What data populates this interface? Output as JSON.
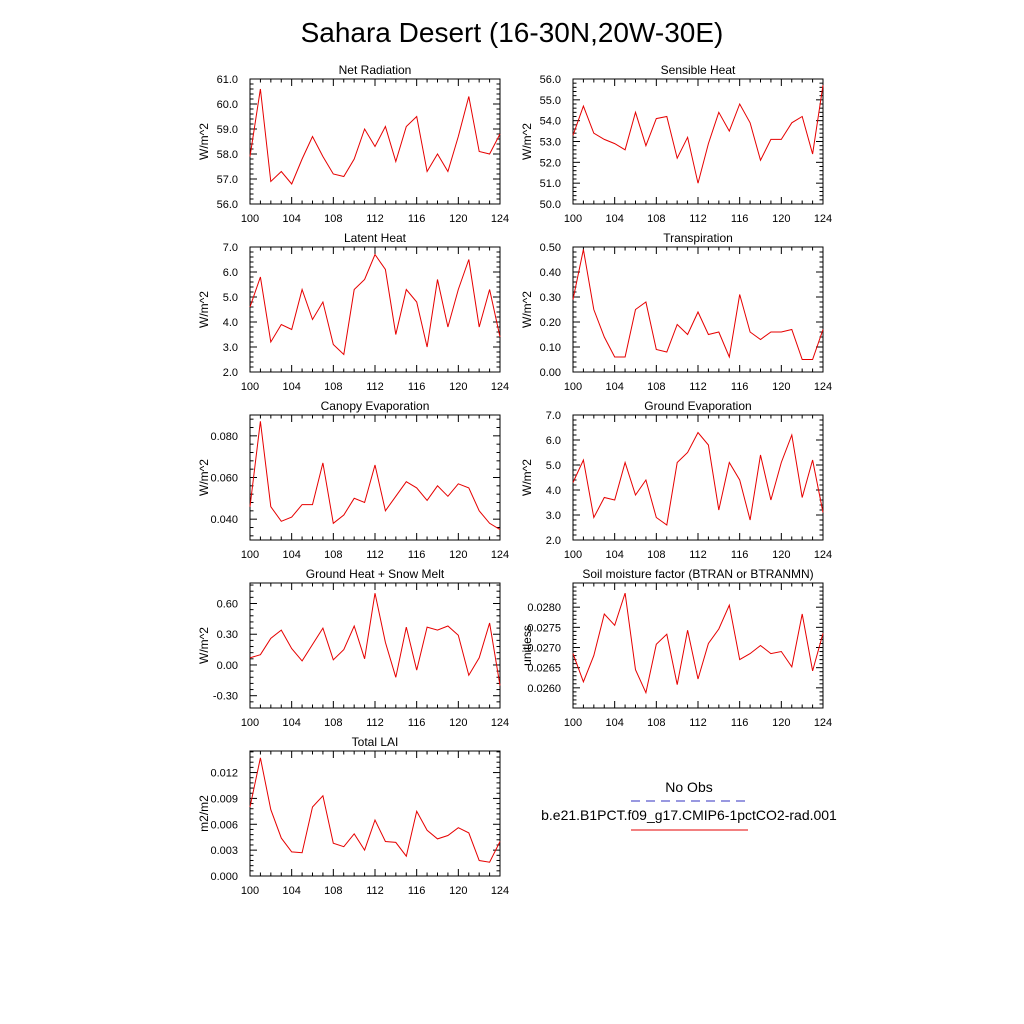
{
  "title": "Sahara Desert (16-30N,20W-30E)",
  "colors": {
    "model": "#e60000",
    "obs": "#3030c0",
    "axis": "#000000"
  },
  "legend": {
    "obs_label": "No Obs",
    "model_label": "b.e21.B1PCT.f09_g17.CMIP6-1pctCO2-rad.001"
  },
  "chart_data": [
    {
      "type": "line",
      "title": "Net Radiation",
      "ylabel": "W/m^2",
      "xlim": [
        100,
        124
      ],
      "ylim": [
        56,
        61
      ],
      "xticks": [
        100,
        104,
        108,
        112,
        116,
        120,
        124
      ],
      "xtick_labels": [
        "100",
        "104",
        "108",
        "112",
        "116",
        "120",
        "124"
      ],
      "yticks": [
        56,
        57,
        58,
        59,
        60,
        61
      ],
      "ytick_labels": [
        "56.0",
        "57.0",
        "58.0",
        "59.0",
        "60.0",
        "61.0"
      ],
      "series": [
        {
          "x": [
            100,
            101,
            102,
            103,
            104,
            105,
            106,
            107,
            108,
            109,
            110,
            111,
            112,
            113,
            114,
            115,
            116,
            117,
            118,
            119,
            120,
            121,
            122,
            123,
            124
          ],
          "values": [
            57.9,
            60.6,
            56.9,
            57.3,
            56.8,
            57.8,
            58.7,
            57.9,
            57.2,
            57.1,
            57.8,
            59.0,
            58.3,
            59.1,
            57.7,
            59.1,
            59.5,
            57.3,
            58.0,
            57.3,
            58.7,
            60.3,
            58.1,
            58.0,
            58.8
          ]
        }
      ]
    },
    {
      "type": "line",
      "title": "Sensible Heat",
      "ylabel": "W/m^2",
      "xlim": [
        100,
        124
      ],
      "ylim": [
        50,
        56
      ],
      "xticks": [
        100,
        104,
        108,
        112,
        116,
        120,
        124
      ],
      "xtick_labels": [
        "100",
        "104",
        "108",
        "112",
        "116",
        "120",
        "124"
      ],
      "yticks": [
        50,
        51,
        52,
        53,
        54,
        55,
        56
      ],
      "ytick_labels": [
        "50.0",
        "51.0",
        "52.0",
        "53.0",
        "54.0",
        "55.0",
        "56.0"
      ],
      "series": [
        {
          "x": [
            100,
            101,
            102,
            103,
            104,
            105,
            106,
            107,
            108,
            109,
            110,
            111,
            112,
            113,
            114,
            115,
            116,
            117,
            118,
            119,
            120,
            121,
            122,
            123,
            124
          ],
          "values": [
            53.3,
            54.7,
            53.4,
            53.1,
            52.9,
            52.6,
            54.4,
            52.8,
            54.1,
            54.2,
            52.2,
            53.2,
            51.0,
            52.9,
            54.4,
            53.5,
            54.8,
            53.9,
            52.1,
            53.1,
            53.1,
            53.9,
            54.2,
            52.4,
            55.7
          ]
        }
      ]
    },
    {
      "type": "line",
      "title": "Latent Heat",
      "ylabel": "W/m^2",
      "xlim": [
        100,
        124
      ],
      "ylim": [
        2,
        7
      ],
      "xticks": [
        100,
        104,
        108,
        112,
        116,
        120,
        124
      ],
      "xtick_labels": [
        "100",
        "104",
        "108",
        "112",
        "116",
        "120",
        "124"
      ],
      "yticks": [
        2,
        3,
        4,
        5,
        6,
        7
      ],
      "ytick_labels": [
        "2.0",
        "3.0",
        "4.0",
        "5.0",
        "6.0",
        "7.0"
      ],
      "series": [
        {
          "x": [
            100,
            101,
            102,
            103,
            104,
            105,
            106,
            107,
            108,
            109,
            110,
            111,
            112,
            113,
            114,
            115,
            116,
            117,
            118,
            119,
            120,
            121,
            122,
            123,
            124
          ],
          "values": [
            4.6,
            5.8,
            3.2,
            3.9,
            3.7,
            5.3,
            4.1,
            4.8,
            3.1,
            2.7,
            5.3,
            5.7,
            6.7,
            6.1,
            3.5,
            5.3,
            4.8,
            3.0,
            5.7,
            3.8,
            5.3,
            6.5,
            3.8,
            5.3,
            3.4
          ]
        }
      ]
    },
    {
      "type": "line",
      "title": "Transpiration",
      "ylabel": "W/m^2",
      "xlim": [
        100,
        124
      ],
      "ylim": [
        0,
        0.5
      ],
      "xticks": [
        100,
        104,
        108,
        112,
        116,
        120,
        124
      ],
      "xtick_labels": [
        "100",
        "104",
        "108",
        "112",
        "116",
        "120",
        "124"
      ],
      "yticks": [
        0,
        0.1,
        0.2,
        0.3,
        0.4,
        0.5
      ],
      "ytick_labels": [
        "0.00",
        "0.10",
        "0.20",
        "0.30",
        "0.40",
        "0.50"
      ],
      "series": [
        {
          "x": [
            100,
            101,
            102,
            103,
            104,
            105,
            106,
            107,
            108,
            109,
            110,
            111,
            112,
            113,
            114,
            115,
            116,
            117,
            118,
            119,
            120,
            121,
            122,
            123,
            124
          ],
          "values": [
            0.29,
            0.49,
            0.25,
            0.14,
            0.06,
            0.06,
            0.25,
            0.28,
            0.09,
            0.08,
            0.19,
            0.15,
            0.24,
            0.15,
            0.16,
            0.06,
            0.31,
            0.16,
            0.13,
            0.16,
            0.16,
            0.17,
            0.05,
            0.05,
            0.17
          ]
        }
      ]
    },
    {
      "type": "line",
      "title": "Canopy Evaporation",
      "ylabel": "W/m^2",
      "xlim": [
        100,
        124
      ],
      "ylim": [
        0.03,
        0.09
      ],
      "xticks": [
        100,
        104,
        108,
        112,
        116,
        120,
        124
      ],
      "xtick_labels": [
        "100",
        "104",
        "108",
        "112",
        "116",
        "120",
        "124"
      ],
      "yticks": [
        0.04,
        0.06,
        0.08
      ],
      "ytick_labels": [
        "0.040",
        "0.060",
        "0.080"
      ],
      "series": [
        {
          "x": [
            100,
            101,
            102,
            103,
            104,
            105,
            106,
            107,
            108,
            109,
            110,
            111,
            112,
            113,
            114,
            115,
            116,
            117,
            118,
            119,
            120,
            121,
            122,
            123,
            124
          ],
          "values": [
            0.046,
            0.087,
            0.046,
            0.039,
            0.041,
            0.047,
            0.047,
            0.067,
            0.038,
            0.042,
            0.05,
            0.048,
            0.066,
            0.044,
            0.051,
            0.058,
            0.055,
            0.049,
            0.056,
            0.051,
            0.057,
            0.055,
            0.044,
            0.038,
            0.035
          ]
        }
      ]
    },
    {
      "type": "line",
      "title": "Ground Evaporation",
      "ylabel": "W/m^2",
      "xlim": [
        100,
        124
      ],
      "ylim": [
        2,
        7
      ],
      "xticks": [
        100,
        104,
        108,
        112,
        116,
        120,
        124
      ],
      "xtick_labels": [
        "100",
        "104",
        "108",
        "112",
        "116",
        "120",
        "124"
      ],
      "yticks": [
        2,
        3,
        4,
        5,
        6,
        7
      ],
      "ytick_labels": [
        "2.0",
        "3.0",
        "4.0",
        "5.0",
        "6.0",
        "7.0"
      ],
      "series": [
        {
          "x": [
            100,
            101,
            102,
            103,
            104,
            105,
            106,
            107,
            108,
            109,
            110,
            111,
            112,
            113,
            114,
            115,
            116,
            117,
            118,
            119,
            120,
            121,
            122,
            123,
            124
          ],
          "values": [
            4.3,
            5.2,
            2.9,
            3.7,
            3.6,
            5.1,
            3.8,
            4.4,
            2.9,
            2.6,
            5.1,
            5.5,
            6.3,
            5.8,
            3.2,
            5.1,
            4.4,
            2.8,
            5.4,
            3.6,
            5.1,
            6.2,
            3.7,
            5.2,
            3.1
          ]
        }
      ]
    },
    {
      "type": "line",
      "title": "Ground Heat + Snow Melt",
      "ylabel": "W/m^2",
      "xlim": [
        100,
        124
      ],
      "ylim": [
        -0.42,
        0.8
      ],
      "xticks": [
        100,
        104,
        108,
        112,
        116,
        120,
        124
      ],
      "xtick_labels": [
        "100",
        "104",
        "108",
        "112",
        "116",
        "120",
        "124"
      ],
      "yticks": [
        -0.3,
        0,
        0.3,
        0.6
      ],
      "ytick_labels": [
        "-0.30",
        "0.00",
        "0.30",
        "0.60"
      ],
      "series": [
        {
          "x": [
            100,
            101,
            102,
            103,
            104,
            105,
            106,
            107,
            108,
            109,
            110,
            111,
            112,
            113,
            114,
            115,
            116,
            117,
            118,
            119,
            120,
            121,
            122,
            123,
            124
          ],
          "values": [
            0.07,
            0.1,
            0.26,
            0.34,
            0.16,
            0.04,
            0.2,
            0.36,
            0.05,
            0.15,
            0.38,
            0.06,
            0.7,
            0.22,
            -0.12,
            0.37,
            -0.05,
            0.37,
            0.34,
            0.38,
            0.29,
            -0.1,
            0.07,
            0.41,
            -0.2
          ]
        }
      ]
    },
    {
      "type": "line",
      "title": "Soil moisture factor (BTRAN or BTRANMN)",
      "ylabel": "unitless",
      "xlim": [
        100,
        124
      ],
      "ylim": [
        0.0255,
        0.0286
      ],
      "xticks": [
        100,
        104,
        108,
        112,
        116,
        120,
        124
      ],
      "xtick_labels": [
        "100",
        "104",
        "108",
        "112",
        "116",
        "120",
        "124"
      ],
      "yticks": [
        0.026,
        0.0265,
        0.027,
        0.0275,
        0.028
      ],
      "ytick_labels": [
        "0.0260",
        "0.0265",
        "0.0270",
        "0.0275",
        "0.0280"
      ],
      "series": [
        {
          "x": [
            100,
            101,
            102,
            103,
            104,
            105,
            106,
            107,
            108,
            109,
            110,
            111,
            112,
            113,
            114,
            115,
            116,
            117,
            118,
            119,
            120,
            121,
            122,
            123,
            124
          ],
          "values": [
            0.02685,
            0.02615,
            0.0268,
            0.02783,
            0.02755,
            0.02835,
            0.02645,
            0.02588,
            0.02708,
            0.02733,
            0.02608,
            0.02743,
            0.02622,
            0.0271,
            0.02746,
            0.02805,
            0.0267,
            0.02685,
            0.02705,
            0.02685,
            0.0269,
            0.02652,
            0.02783,
            0.02642,
            0.02735
          ]
        }
      ]
    },
    {
      "type": "line",
      "title": "Total LAI",
      "ylabel": "m2/m2",
      "xlim": [
        100,
        124
      ],
      "ylim": [
        0,
        0.0145
      ],
      "xticks": [
        100,
        104,
        108,
        112,
        116,
        120,
        124
      ],
      "xtick_labels": [
        "100",
        "104",
        "108",
        "112",
        "116",
        "120",
        "124"
      ],
      "yticks": [
        0,
        0.003,
        0.006,
        0.009,
        0.012
      ],
      "ytick_labels": [
        "0.000",
        "0.003",
        "0.006",
        "0.009",
        "0.012"
      ],
      "series": [
        {
          "x": [
            100,
            101,
            102,
            103,
            104,
            105,
            106,
            107,
            108,
            109,
            110,
            111,
            112,
            113,
            114,
            115,
            116,
            117,
            118,
            119,
            120,
            121,
            122,
            123,
            124
          ],
          "values": [
            0.008,
            0.0137,
            0.0077,
            0.0044,
            0.0028,
            0.0027,
            0.008,
            0.0093,
            0.0038,
            0.0034,
            0.0049,
            0.003,
            0.0065,
            0.004,
            0.0039,
            0.0023,
            0.0075,
            0.0053,
            0.0043,
            0.0047,
            0.0056,
            0.005,
            0.0018,
            0.0016,
            0.004
          ]
        }
      ]
    }
  ]
}
